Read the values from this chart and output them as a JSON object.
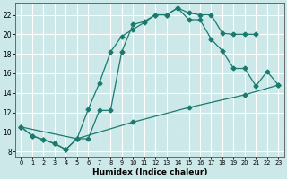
{
  "xlabel": "Humidex (Indice chaleur)",
  "bg_color": "#cce8e8",
  "grid_color": "#ffffff",
  "line_color": "#1a7a6e",
  "xlim": [
    -0.5,
    23.5
  ],
  "ylim": [
    7.5,
    23.2
  ],
  "xticks": [
    0,
    1,
    2,
    3,
    4,
    5,
    6,
    7,
    8,
    9,
    10,
    11,
    12,
    13,
    14,
    15,
    16,
    17,
    18,
    19,
    20,
    21,
    22,
    23
  ],
  "yticks": [
    8,
    10,
    12,
    14,
    16,
    18,
    20,
    22
  ],
  "line1_x": [
    0,
    1,
    2,
    3,
    4,
    5,
    6,
    7,
    8,
    9,
    10,
    11,
    12,
    13,
    14,
    15,
    16,
    17,
    18,
    19,
    20,
    21
  ],
  "line1_y": [
    10.5,
    9.6,
    9.2,
    8.8,
    8.2,
    9.3,
    12.3,
    15.0,
    18.2,
    19.8,
    20.5,
    21.2,
    22.0,
    22.0,
    22.7,
    22.2,
    22.0,
    22.0,
    20.1,
    20.0,
    20.0,
    20.0
  ],
  "line2_x": [
    0,
    1,
    2,
    3,
    4,
    5,
    6,
    7,
    8,
    9,
    10,
    11,
    12,
    13,
    14,
    15,
    16,
    17,
    18,
    19,
    20,
    21,
    22,
    23
  ],
  "line2_y": [
    10.5,
    9.6,
    9.2,
    8.8,
    8.2,
    9.3,
    9.3,
    12.2,
    12.2,
    18.2,
    21.0,
    21.3,
    22.0,
    22.0,
    22.7,
    21.5,
    21.5,
    19.5,
    18.3,
    16.5,
    16.5,
    14.7,
    16.2,
    14.8
  ],
  "line3_x": [
    0,
    5,
    10,
    15,
    20,
    23
  ],
  "line3_y": [
    10.5,
    9.3,
    11.0,
    12.5,
    13.8,
    14.8
  ]
}
